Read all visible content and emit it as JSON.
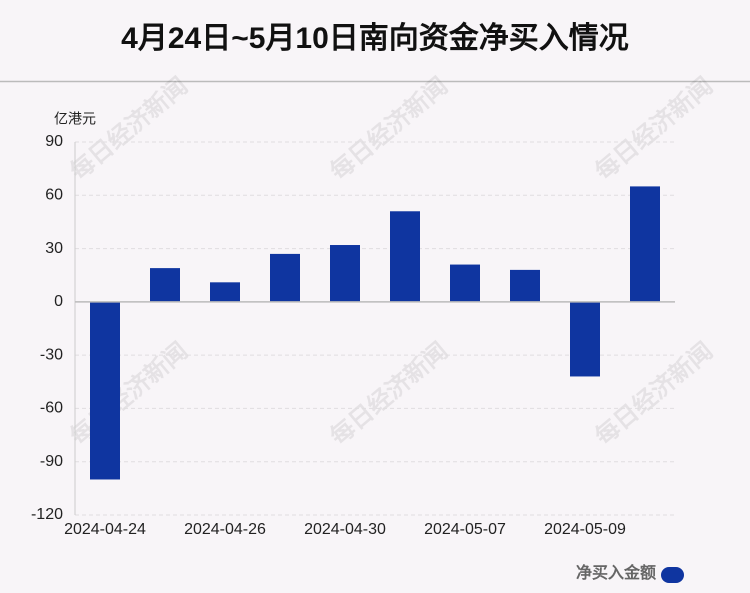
{
  "chart_data": {
    "type": "bar",
    "title": "4月24日~5月10日南向资金净买入情况",
    "y_label": "亿港元",
    "watermark": "每日经济新闻",
    "categories": [
      "2024-04-24",
      null,
      "2024-04-26",
      null,
      "2024-04-30",
      null,
      "2024-05-07",
      null,
      "2024-05-09",
      null
    ],
    "series": [
      {
        "name": "净买入金额",
        "color": "#0f35a0",
        "values": [
          -100,
          19,
          11,
          27,
          32,
          51,
          21,
          18,
          -42,
          65
        ]
      }
    ],
    "ylim": [
      -120,
      90
    ],
    "yticks": [
      -120,
      -90,
      -60,
      -30,
      0,
      30,
      60,
      90
    ],
    "grid": true,
    "legend": "bottom-right"
  }
}
